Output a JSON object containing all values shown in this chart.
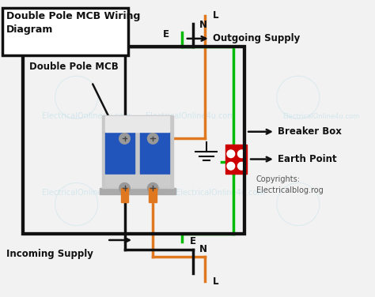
{
  "bg_color": "#f2f2f2",
  "title": "Double Pole MCB Wiring\nDiagram",
  "watermark": "ElectricalOnline4u.com",
  "copyright": "Copyrights:\nElectricalblog.rog",
  "label_double_pole": "Double Pole MCB",
  "label_outgoing": "Outgoing Supply",
  "label_incoming": "Incoming Supply",
  "label_breaker": "Breaker Box",
  "label_earth": "Earth Point",
  "label_L_top": "L",
  "label_N_top": "N",
  "label_E_top": "E",
  "label_E_bot": "E",
  "label_N_bot": "N",
  "label_L_bot": "L",
  "color_orange": "#E07820",
  "color_black": "#111111",
  "color_green": "#00bb00",
  "color_red": "#cc0000",
  "color_white": "#ffffff",
  "color_gray_light": "#c8c8c8",
  "color_gray_med": "#999999",
  "color_mcb_blue": "#2255bb",
  "color_mcb_white": "#e8e8e8",
  "color_din": "#aaaaaa"
}
